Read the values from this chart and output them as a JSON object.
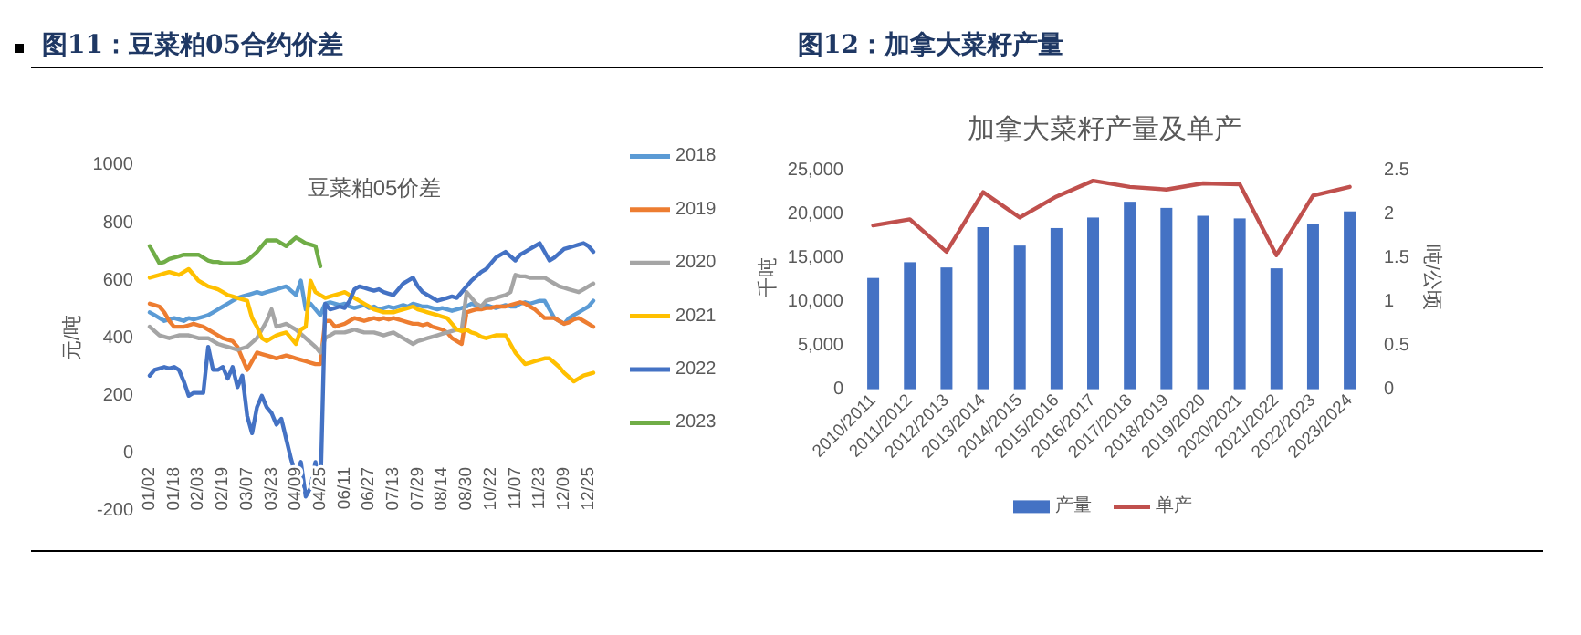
{
  "chart_data": [
    {
      "type": "line",
      "title": "图11：豆菜粕05合约价差",
      "subtitle": "豆菜粕05价差",
      "ylabel": "元/吨",
      "categories": [
        "01/02",
        null,
        null,
        null,
        null,
        "01/18",
        null,
        null,
        null,
        null,
        "02/03",
        null,
        null,
        null,
        null,
        "02/19",
        null,
        null,
        null,
        null,
        "03/07",
        null,
        null,
        null,
        null,
        "03/23",
        null,
        null,
        null,
        null,
        "04/09",
        null,
        null,
        null,
        null,
        "04/25",
        null,
        null,
        null,
        null,
        "06/11",
        null,
        null,
        null,
        null,
        "06/27",
        null,
        null,
        null,
        null,
        "07/13",
        null,
        null,
        null,
        null,
        "07/29",
        null,
        null,
        null,
        null,
        "08/14",
        null,
        null,
        null,
        null,
        "08/30",
        null,
        null,
        null,
        null,
        "10/22",
        null,
        null,
        null,
        null,
        "11/07",
        null,
        null,
        null,
        null,
        "11/23",
        null,
        null,
        null,
        null,
        "12/09",
        null,
        null,
        null,
        null,
        "12/25",
        null
      ],
      "ylim": [
        -200,
        1000
      ],
      "yticks": [
        -200,
        0,
        200,
        400,
        600,
        800,
        1000
      ],
      "legend": "right",
      "series": [
        {
          "name": "2018",
          "color": "#5b9bd5",
          "values": [
            490,
            480,
            470,
            460,
            465,
            470,
            465,
            460,
            470,
            465,
            470,
            475,
            480,
            490,
            500,
            510,
            520,
            530,
            540,
            545,
            550,
            555,
            560,
            555,
            560,
            565,
            570,
            575,
            580,
            565,
            550,
            600,
            500,
            520,
            500,
            480,
            520,
            525,
            520,
            515,
            520,
            510,
            505,
            510,
            515,
            505,
            510,
            500,
            505,
            510,
            505,
            510,
            515,
            510,
            520,
            515,
            510,
            510,
            505,
            500,
            505,
            500,
            495,
            500,
            505,
            510,
            520,
            515,
            510,
            515,
            510,
            505,
            510,
            515,
            510,
            510,
            520,
            525,
            520,
            525,
            530,
            530,
            500,
            470,
            460,
            450,
            470,
            480,
            490,
            500,
            510,
            530
          ]
        },
        {
          "name": "2019",
          "color": "#ed7d31",
          "values": [
            520,
            515,
            510,
            490,
            460,
            440,
            440,
            440,
            445,
            450,
            445,
            440,
            430,
            420,
            410,
            400,
            395,
            390,
            370,
            330,
            290,
            320,
            350,
            345,
            340,
            335,
            330,
            335,
            340,
            335,
            330,
            325,
            320,
            315,
            310,
            310,
            460,
            460,
            440,
            445,
            450,
            460,
            470,
            465,
            460,
            465,
            470,
            465,
            470,
            465,
            470,
            465,
            460,
            455,
            450,
            450,
            445,
            450,
            440,
            435,
            430,
            420,
            400,
            390,
            380,
            490,
            495,
            500,
            500,
            505,
            505,
            510,
            510,
            510,
            515,
            520,
            525,
            520,
            510,
            500,
            485,
            470,
            470,
            470,
            460,
            450,
            455,
            465,
            470,
            460,
            450,
            440
          ]
        },
        {
          "name": "2020",
          "color": "#a5a5a5",
          "values": [
            440,
            425,
            410,
            405,
            400,
            405,
            410,
            410,
            410,
            405,
            400,
            400,
            400,
            390,
            380,
            375,
            370,
            365,
            360,
            365,
            370,
            385,
            400,
            430,
            460,
            500,
            440,
            445,
            450,
            440,
            430,
            415,
            400,
            385,
            370,
            350,
            400,
            410,
            420,
            420,
            420,
            425,
            430,
            425,
            420,
            420,
            420,
            415,
            410,
            415,
            420,
            410,
            400,
            390,
            380,
            390,
            395,
            400,
            405,
            410,
            415,
            420,
            425,
            430,
            430,
            560,
            540,
            520,
            510,
            530,
            535,
            540,
            545,
            550,
            560,
            620,
            615,
            615,
            610,
            610,
            610,
            610,
            600,
            590,
            580,
            575,
            570,
            565,
            560,
            570,
            580,
            590
          ]
        },
        {
          "name": "2021",
          "color": "#ffc000",
          "values": [
            610,
            615,
            620,
            625,
            630,
            625,
            620,
            630,
            640,
            620,
            600,
            590,
            580,
            575,
            570,
            560,
            550,
            545,
            540,
            535,
            530,
            470,
            440,
            400,
            390,
            400,
            410,
            415,
            420,
            400,
            380,
            430,
            440,
            600,
            560,
            550,
            540,
            545,
            550,
            555,
            560,
            550,
            540,
            530,
            520,
            510,
            500,
            495,
            490,
            490,
            490,
            495,
            500,
            505,
            510,
            500,
            495,
            490,
            485,
            480,
            475,
            470,
            450,
            430,
            425,
            430,
            420,
            415,
            405,
            400,
            405,
            410,
            410,
            410,
            380,
            350,
            330,
            310,
            315,
            320,
            325,
            330,
            330,
            315,
            300,
            280,
            265,
            250,
            260,
            270,
            275,
            280
          ]
        },
        {
          "name": "2022",
          "color": "#4472c4",
          "values": [
            270,
            290,
            295,
            300,
            295,
            300,
            290,
            250,
            200,
            210,
            210,
            210,
            370,
            290,
            290,
            300,
            260,
            300,
            230,
            270,
            130,
            70,
            160,
            200,
            160,
            140,
            100,
            120,
            50,
            -20,
            -80,
            -30,
            -150,
            -120,
            -30,
            -150,
            520,
            500,
            505,
            510,
            505,
            530,
            570,
            580,
            575,
            570,
            565,
            570,
            560,
            555,
            550,
            570,
            590,
            600,
            610,
            580,
            560,
            550,
            540,
            530,
            535,
            540,
            545,
            540,
            560,
            580,
            600,
            615,
            630,
            640,
            660,
            680,
            690,
            700,
            685,
            670,
            690,
            700,
            710,
            720,
            730,
            700,
            670,
            680,
            695,
            710,
            715,
            720,
            725,
            730,
            720,
            700
          ]
        },
        {
          "name": "2023",
          "color": "#70ad47",
          "values": [
            720,
            690,
            660,
            665,
            675,
            680,
            685,
            690,
            690,
            690,
            690,
            680,
            670,
            665,
            665,
            660,
            660,
            660,
            660,
            665,
            670,
            685,
            700,
            720,
            740,
            740,
            740,
            730,
            720,
            735,
            750,
            740,
            730,
            725,
            720,
            650,
            null,
            null,
            null,
            null,
            null,
            null,
            null,
            null,
            null,
            null,
            null,
            null,
            null,
            null,
            null,
            null,
            null,
            null,
            null,
            null,
            null,
            null,
            null,
            null,
            null,
            null,
            null,
            null,
            null,
            null,
            null,
            null,
            null,
            null,
            null,
            null,
            null,
            null,
            null,
            null,
            null,
            null,
            null,
            null,
            null,
            null,
            null,
            null,
            null,
            null,
            null,
            null,
            null,
            null,
            null,
            null
          ]
        }
      ]
    },
    {
      "type": "bar",
      "title": "图12：加拿大菜籽产量",
      "subtitle": "加拿大菜籽产量及单产",
      "ylabel": "千吨",
      "y2label": "吨/公顷",
      "categories": [
        "2010/2011",
        "2011/2012",
        "2012/2013",
        "2013/2014",
        "2014/2015",
        "2015/2016",
        "2016/2017",
        "2017/2018",
        "2018/2019",
        "2019/2020",
        "2020/2021",
        "2021/2022",
        "2022/2023",
        "2023/2024"
      ],
      "ylim": [
        0,
        25000
      ],
      "yticks": [
        0,
        {
          "value": 5000,
          "label": "5,000"
        },
        {
          "value": 10000,
          "label": "10,000"
        },
        {
          "value": 15000,
          "label": "15,000"
        },
        {
          "value": 20000,
          "label": "20,000"
        },
        {
          "value": 25000,
          "label": "25,000"
        }
      ],
      "y2lim": [
        0,
        2.5
      ],
      "y2ticks": [
        0,
        0.5,
        1,
        1.5,
        2,
        2.5
      ],
      "legend": "bottom",
      "series": [
        {
          "name": "产量",
          "color": "#4472c4",
          "values": [
            12700,
            14500,
            13900,
            18500,
            16400,
            18400,
            19600,
            21400,
            20700,
            19800,
            19500,
            13800,
            18900,
            20300
          ]
        },
        {
          "name": "单产",
          "type": "line",
          "axis": "y2",
          "color": "#c0504d",
          "values": [
            1.87,
            1.94,
            1.57,
            2.25,
            1.96,
            2.2,
            2.38,
            2.31,
            2.28,
            2.35,
            2.34,
            1.53,
            2.21,
            2.31
          ]
        }
      ]
    }
  ]
}
